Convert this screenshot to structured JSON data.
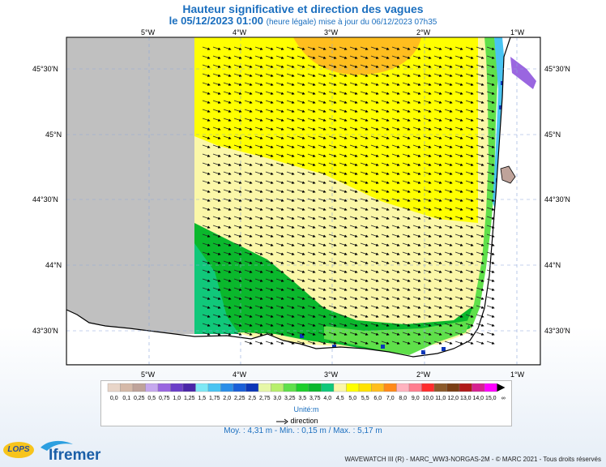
{
  "header": {
    "title": "Hauteur significative et direction des vagues",
    "date_line": "le 05/12/2023 01:00",
    "update_note": "(heure légale) mise à jour du 06/12/2023 07h35"
  },
  "map": {
    "lon_labels": [
      "5°W",
      "4°W",
      "3°W",
      "2°W",
      "1°W"
    ],
    "lat_labels": [
      "45°30'N",
      "45°N",
      "44°30'N",
      "44°N",
      "43°30'N"
    ]
  },
  "legend": {
    "units": "Unité:m",
    "direction_label": "direction",
    "classes": [
      {
        "label": "0,0",
        "color": "#e8d5c8"
      },
      {
        "label": "0,1",
        "color": "#d5b9a8"
      },
      {
        "label": "0,25",
        "color": "#bfa39a"
      },
      {
        "label": "0,5",
        "color": "#c6a8ee"
      },
      {
        "label": "0,75",
        "color": "#9a66e0"
      },
      {
        "label": "1,0",
        "color": "#6b3ec8"
      },
      {
        "label": "1,25",
        "color": "#4a25a8"
      },
      {
        "label": "1,5",
        "color": "#7ee8f5"
      },
      {
        "label": "1,75",
        "color": "#49c4f2"
      },
      {
        "label": "2,0",
        "color": "#2a8ee8"
      },
      {
        "label": "2,25",
        "color": "#1a5fd8"
      },
      {
        "label": "2,5",
        "color": "#0c36b8"
      },
      {
        "label": "2,75",
        "color": "#e6f7a8"
      },
      {
        "label": "3,0",
        "color": "#b8ef6c"
      },
      {
        "label": "3,25",
        "color": "#5fe04a"
      },
      {
        "label": "3,5",
        "color": "#1dcf2a"
      },
      {
        "label": "3,75",
        "color": "#0ab82c"
      },
      {
        "label": "4,0",
        "color": "#10c87a"
      },
      {
        "label": "4,5",
        "color": "#fbf7a8"
      },
      {
        "label": "5,0",
        "color": "#ffff00"
      },
      {
        "label": "5,5",
        "color": "#ffe200"
      },
      {
        "label": "6,0",
        "color": "#ffbe1e"
      },
      {
        "label": "7,0",
        "color": "#ff8a1a"
      },
      {
        "label": "8,0",
        "color": "#ffb3bf"
      },
      {
        "label": "9,0",
        "color": "#ff7d8e"
      },
      {
        "label": "10,0",
        "color": "#ff2d2d"
      },
      {
        "label": "11,0",
        "color": "#8c5a2a"
      },
      {
        "label": "12,0",
        "color": "#7a3e14"
      },
      {
        "label": "13,0",
        "color": "#b01818"
      },
      {
        "label": "14,0",
        "color": "#d62090"
      },
      {
        "label": "15,0",
        "color": "#ff00ff"
      },
      {
        "label": "∞",
        "color": "#000000"
      }
    ]
  },
  "stats": "Moy. : 4,31 m   -   Min. : 0,15 m / Max. : 5,17 m",
  "footer": "WAVEWATCH III (R) - MARC_WW3-NORGAS-2M - © MARC 2021 - Tous droits réservés",
  "logos": {
    "lops": "LOPS",
    "ifremer": "Ifremer"
  }
}
